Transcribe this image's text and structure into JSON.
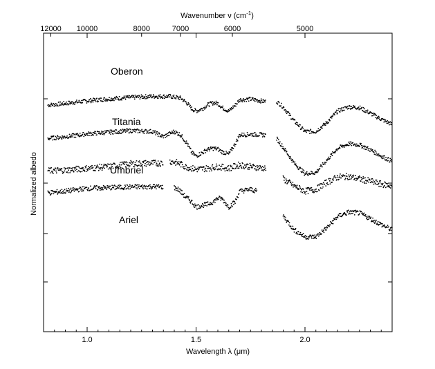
{
  "chart_data": {
    "type": "scatter",
    "xlabel": "Wavelength λ (μm)",
    "x2label": "Wavenumber ν (cm",
    "x2label_sup": "-1",
    "x2label_close": ")",
    "ylabel": "Normalized albedo",
    "xlim": [
      0.8,
      2.4
    ],
    "x_ticks": [
      "1.0",
      "1.5",
      "2.0"
    ],
    "x_tick_values": [
      1.0,
      1.5,
      2.0
    ],
    "x2_ticks": [
      "12000",
      "10000",
      "8000",
      "7000",
      "6000",
      "5000"
    ],
    "x2_tick_values": [
      12000,
      10000,
      8000,
      7000,
      6000,
      5000
    ],
    "grid": false,
    "legend": "none",
    "series": [
      {
        "name": "Oberon",
        "offset": 3.0,
        "noise": 0.06,
        "segments": [
          [
            0.82,
            1.82
          ],
          [
            1.87,
            2.4
          ]
        ],
        "x": [
          0.82,
          0.9,
          1.0,
          1.1,
          1.2,
          1.3,
          1.38,
          1.43,
          1.46,
          1.48,
          1.5,
          1.53,
          1.55,
          1.58,
          1.6,
          1.62,
          1.65,
          1.68,
          1.7,
          1.75,
          1.82,
          1.87,
          1.9,
          1.95,
          2.0,
          2.05,
          2.1,
          2.15,
          2.2,
          2.25,
          2.3,
          2.35,
          2.4
        ],
        "y": [
          1.95,
          2.0,
          2.07,
          2.13,
          2.17,
          2.2,
          2.2,
          2.15,
          2.0,
          1.85,
          1.78,
          1.85,
          1.95,
          2.02,
          2.0,
          1.88,
          1.78,
          1.95,
          2.1,
          2.12,
          2.05,
          2.06,
          1.9,
          1.5,
          1.2,
          1.2,
          1.45,
          1.78,
          1.9,
          1.88,
          1.72,
          1.55,
          1.4
        ]
      },
      {
        "name": "Titania",
        "offset": 2.0,
        "noise": 0.06,
        "segments": [
          [
            0.82,
            1.82
          ],
          [
            1.87,
            2.4
          ]
        ],
        "x": [
          0.82,
          0.9,
          1.0,
          1.1,
          1.2,
          1.3,
          1.35,
          1.4,
          1.43,
          1.46,
          1.48,
          1.5,
          1.53,
          1.55,
          1.58,
          1.6,
          1.62,
          1.65,
          1.68,
          1.7,
          1.75,
          1.82,
          1.87,
          1.9,
          1.95,
          2.0,
          2.05,
          2.1,
          2.15,
          2.2,
          2.25,
          2.3,
          2.35,
          2.4
        ],
        "y": [
          2.0,
          2.05,
          2.13,
          2.18,
          2.22,
          2.2,
          2.05,
          2.2,
          2.1,
          1.85,
          1.6,
          1.5,
          1.6,
          1.68,
          1.72,
          1.7,
          1.62,
          1.55,
          1.85,
          2.1,
          2.12,
          2.1,
          2.0,
          1.75,
          1.3,
          1.0,
          1.03,
          1.38,
          1.72,
          1.85,
          1.82,
          1.68,
          1.5,
          1.35
        ]
      },
      {
        "name": "Umbriel",
        "offset": 1.0,
        "noise": 0.09,
        "segments": [
          [
            0.82,
            1.35
          ],
          [
            1.38,
            1.82
          ],
          [
            1.9,
            2.4
          ]
        ],
        "x": [
          0.82,
          0.9,
          1.0,
          1.1,
          1.2,
          1.3,
          1.35,
          1.38,
          1.42,
          1.45,
          1.5,
          1.55,
          1.6,
          1.65,
          1.7,
          1.75,
          1.82,
          1.9,
          1.95,
          2.0,
          2.05,
          2.1,
          2.15,
          2.2,
          2.25,
          2.3,
          2.35,
          2.4
        ],
        "y": [
          2.08,
          2.1,
          2.15,
          2.2,
          2.28,
          2.3,
          2.3,
          2.35,
          2.3,
          2.2,
          2.12,
          2.15,
          2.2,
          2.15,
          2.25,
          2.2,
          2.15,
          1.85,
          1.65,
          1.5,
          1.55,
          1.75,
          1.9,
          1.92,
          1.85,
          1.78,
          1.7,
          1.65
        ]
      },
      {
        "name": "Ariel",
        "offset": 0.0,
        "noise": 0.07,
        "segments": [
          [
            0.82,
            1.35
          ],
          [
            1.4,
            1.78
          ],
          [
            1.9,
            2.4
          ]
        ],
        "x": [
          0.82,
          0.9,
          1.0,
          1.1,
          1.2,
          1.3,
          1.35,
          1.4,
          1.42,
          1.45,
          1.48,
          1.5,
          1.53,
          1.55,
          1.58,
          1.6,
          1.62,
          1.65,
          1.68,
          1.7,
          1.75,
          1.78,
          1.9,
          1.95,
          2.0,
          2.05,
          2.1,
          2.15,
          2.2,
          2.25,
          2.3,
          2.35,
          2.4
        ],
        "y": [
          2.45,
          2.5,
          2.58,
          2.6,
          2.62,
          2.63,
          2.62,
          2.6,
          2.55,
          2.35,
          2.2,
          2.05,
          2.1,
          2.12,
          2.2,
          2.3,
          2.28,
          2.05,
          2.2,
          2.5,
          2.55,
          2.5,
          1.8,
          1.4,
          1.2,
          1.2,
          1.45,
          1.78,
          1.9,
          1.88,
          1.72,
          1.55,
          1.4
        ]
      }
    ]
  }
}
